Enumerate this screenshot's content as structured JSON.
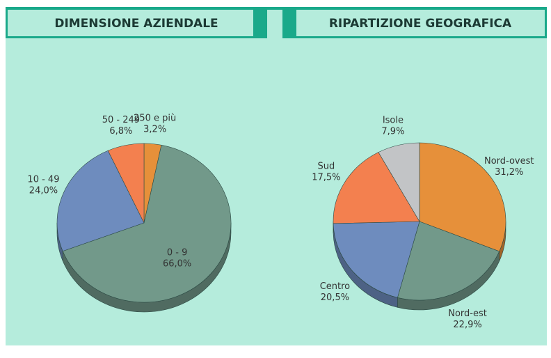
{
  "chart_data": [
    {
      "type": "pie",
      "title": "DIMENSIONE AZIENDALE",
      "categories": [
        "250 e più",
        "0 - 9",
        "10 - 49",
        "50 - 249"
      ],
      "values": [
        3.2,
        66.0,
        24.0,
        6.8
      ],
      "value_labels": [
        "3,2%",
        "66,0%",
        "24,0%",
        "6,8%"
      ],
      "colors": [
        "#e6903a",
        "#72998a",
        "#6e8cbe",
        "#f3804f"
      ]
    },
    {
      "type": "pie",
      "title": "RIPARTIZIONE GEOGRAFICA",
      "categories": [
        "Nord-ovest",
        "Nord-est",
        "Centro",
        "Sud",
        "Isole"
      ],
      "values": [
        31.2,
        22.9,
        20.5,
        17.5,
        7.9
      ],
      "value_labels": [
        "31,2%",
        "22,9%",
        "20,5%",
        "17,5%",
        "7,9%"
      ],
      "colors": [
        "#e6903a",
        "#72998a",
        "#6e8cbe",
        "#f3804f",
        "#c2c4c6"
      ]
    }
  ]
}
